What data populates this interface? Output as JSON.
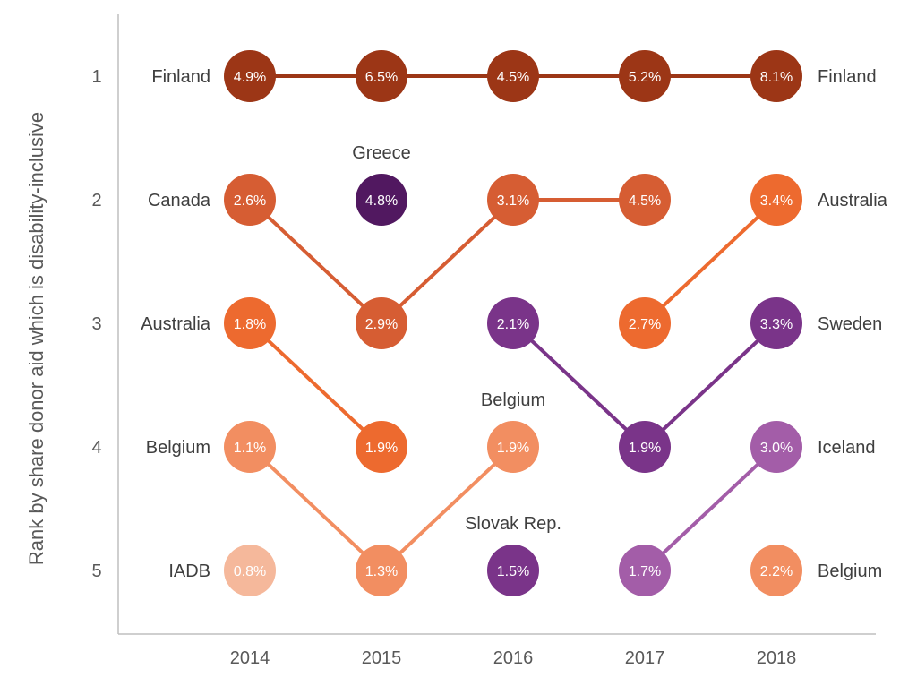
{
  "chart_data": {
    "type": "bump",
    "ylabel": "Rank by share donor aid which is disability-inclusive",
    "years": [
      "2014",
      "2015",
      "2016",
      "2017",
      "2018"
    ],
    "ranks": [
      "1",
      "2",
      "3",
      "4",
      "5"
    ],
    "colors": {
      "Finland": "#9c3616",
      "Canada": "#d65d33",
      "Australia": "#ed6a2f",
      "Belgium": "#f28e61",
      "IADB": "#f5b89b",
      "Greece": "#511860",
      "Sweden": "#7a3489",
      "Slovak Rep.": "#7a3489",
      "Iceland": "#a35da8"
    },
    "points": [
      {
        "year": "2014",
        "rank": 1,
        "donor": "Finland",
        "value": "4.9%"
      },
      {
        "year": "2014",
        "rank": 2,
        "donor": "Canada",
        "value": "2.6%"
      },
      {
        "year": "2014",
        "rank": 3,
        "donor": "Australia",
        "value": "1.8%"
      },
      {
        "year": "2014",
        "rank": 4,
        "donor": "Belgium",
        "value": "1.1%"
      },
      {
        "year": "2014",
        "rank": 5,
        "donor": "IADB",
        "value": "0.8%"
      },
      {
        "year": "2015",
        "rank": 1,
        "donor": "Finland",
        "value": "6.5%"
      },
      {
        "year": "2015",
        "rank": 2,
        "donor": "Greece",
        "value": "4.8%"
      },
      {
        "year": "2015",
        "rank": 3,
        "donor": "Canada",
        "value": "2.9%"
      },
      {
        "year": "2015",
        "rank": 4,
        "donor": "Australia",
        "value": "1.9%"
      },
      {
        "year": "2015",
        "rank": 5,
        "donor": "Belgium",
        "value": "1.3%"
      },
      {
        "year": "2016",
        "rank": 1,
        "donor": "Finland",
        "value": "4.5%"
      },
      {
        "year": "2016",
        "rank": 2,
        "donor": "Canada",
        "value": "3.1%"
      },
      {
        "year": "2016",
        "rank": 3,
        "donor": "Sweden",
        "value": "2.1%"
      },
      {
        "year": "2016",
        "rank": 4,
        "donor": "Belgium",
        "value": "1.9%"
      },
      {
        "year": "2016",
        "rank": 5,
        "donor": "Slovak Rep.",
        "value": "1.5%"
      },
      {
        "year": "2017",
        "rank": 1,
        "donor": "Finland",
        "value": "5.2%"
      },
      {
        "year": "2017",
        "rank": 2,
        "donor": "Canada",
        "value": "4.5%"
      },
      {
        "year": "2017",
        "rank": 3,
        "donor": "Australia",
        "value": "2.7%"
      },
      {
        "year": "2017",
        "rank": 4,
        "donor": "Sweden",
        "value": "1.9%"
      },
      {
        "year": "2017",
        "rank": 5,
        "donor": "Iceland",
        "value": "1.7%"
      },
      {
        "year": "2018",
        "rank": 1,
        "donor": "Finland",
        "value": "8.1%"
      },
      {
        "year": "2018",
        "rank": 2,
        "donor": "Australia",
        "value": "3.4%"
      },
      {
        "year": "2018",
        "rank": 3,
        "donor": "Sweden",
        "value": "3.3%"
      },
      {
        "year": "2018",
        "rank": 4,
        "donor": "Iceland",
        "value": "3.0%"
      },
      {
        "year": "2018",
        "rank": 5,
        "donor": "Belgium",
        "value": "2.2%"
      }
    ],
    "connectors": [
      {
        "donor": "Finland",
        "from": [
          "2014",
          1
        ],
        "to": [
          "2015",
          1
        ]
      },
      {
        "donor": "Finland",
        "from": [
          "2015",
          1
        ],
        "to": [
          "2016",
          1
        ]
      },
      {
        "donor": "Finland",
        "from": [
          "2016",
          1
        ],
        "to": [
          "2017",
          1
        ]
      },
      {
        "donor": "Finland",
        "from": [
          "2017",
          1
        ],
        "to": [
          "2018",
          1
        ]
      },
      {
        "donor": "Canada",
        "from": [
          "2014",
          2
        ],
        "to": [
          "2015",
          3
        ]
      },
      {
        "donor": "Canada",
        "from": [
          "2015",
          3
        ],
        "to": [
          "2016",
          2
        ]
      },
      {
        "donor": "Canada",
        "from": [
          "2016",
          2
        ],
        "to": [
          "2017",
          2
        ]
      },
      {
        "donor": "Australia",
        "from": [
          "2014",
          3
        ],
        "to": [
          "2015",
          4
        ]
      },
      {
        "donor": "Australia",
        "from": [
          "2017",
          3
        ],
        "to": [
          "2018",
          2
        ]
      },
      {
        "donor": "Belgium",
        "from": [
          "2014",
          4
        ],
        "to": [
          "2015",
          5
        ]
      },
      {
        "donor": "Belgium",
        "from": [
          "2015",
          5
        ],
        "to": [
          "2016",
          4
        ]
      },
      {
        "donor": "Sweden",
        "from": [
          "2016",
          3
        ],
        "to": [
          "2017",
          4
        ]
      },
      {
        "donor": "Sweden",
        "from": [
          "2017",
          4
        ],
        "to": [
          "2018",
          3
        ]
      },
      {
        "donor": "Iceland",
        "from": [
          "2017",
          5
        ],
        "to": [
          "2018",
          4
        ]
      }
    ],
    "left_labels": [
      "Finland",
      "Canada",
      "Australia",
      "Belgium",
      "IADB"
    ],
    "right_labels": [
      "Finland",
      "Australia",
      "Sweden",
      "Iceland",
      "Belgium"
    ],
    "annotations": [
      {
        "text": "Greece",
        "year": "2015",
        "rank": 2
      },
      {
        "text": "Belgium",
        "year": "2016",
        "rank": 4
      },
      {
        "text": "Slovak Rep.",
        "year": "2016",
        "rank": 5
      }
    ]
  }
}
